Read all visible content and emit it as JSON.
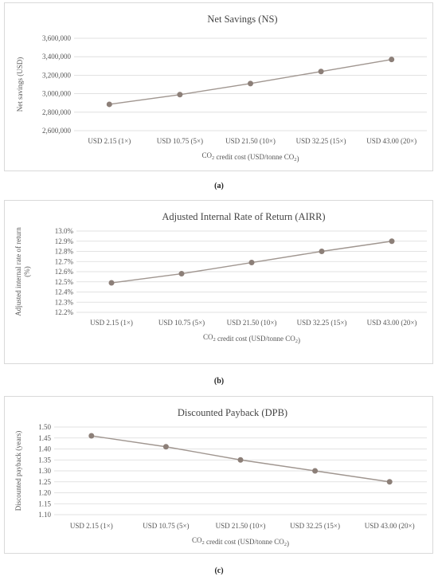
{
  "chart_data": [
    {
      "type": "line",
      "title": "Net Savings (NS)",
      "xlabel": "CO₂ credit cost (USD/tonne CO₂)",
      "ylabel": "Net savings (USD)",
      "categories": [
        "USD 2.15 (1×)",
        "USD 10.75 (5×)",
        "USD 21.50 (10×)",
        "USD 32.25 (15×)",
        "USD 43.00 (20×)"
      ],
      "values": [
        2885000,
        2990000,
        3110000,
        3240000,
        3370000
      ],
      "ylim": [
        2600000,
        3600000
      ],
      "yticks": [
        "2,600,000",
        "2,800,000",
        "3,000,000",
        "3,200,000",
        "3,400,000",
        "3,600,000"
      ],
      "caption": "(a)",
      "color": "#a09690",
      "grid": true
    },
    {
      "type": "line",
      "title": "Adjusted Internal Rate of Return (AIRR)",
      "xlabel": "CO₂ credit cost (USD/tonne CO₂)",
      "ylabel": "Adjusted internal rate of return (%)",
      "categories": [
        "USD 2.15 (1×)",
        "USD 10.75 (5×)",
        "USD 21.50 (10×)",
        "USD 32.25 (15×)",
        "USD 43.00 (20×)"
      ],
      "values": [
        12.49,
        12.58,
        12.69,
        12.8,
        12.9
      ],
      "ylim": [
        12.2,
        13.0
      ],
      "yticks": [
        "12.2%",
        "12.3%",
        "12.4%",
        "12.5%",
        "12.6%",
        "12.7%",
        "12.8%",
        "12.9%",
        "13.0%"
      ],
      "caption": "(b)",
      "color": "#a09690",
      "grid": true
    },
    {
      "type": "line",
      "title": "Discounted Payback (DPB)",
      "xlabel": "CO₂ credit cost (USD/tonne CO₂)",
      "ylabel": "Discounted payback (years)",
      "categories": [
        "USD 2.15 (1×)",
        "USD 10.75 (5×)",
        "USD 21.50 (10×)",
        "USD 32.25 (15×)",
        "USD 43.00 (20×)"
      ],
      "values": [
        1.46,
        1.41,
        1.35,
        1.3,
        1.25
      ],
      "ylim": [
        1.1,
        1.5
      ],
      "yticks": [
        "1.10",
        "1.15",
        "1.20",
        "1.25",
        "1.30",
        "1.35",
        "1.40",
        "1.45",
        "1.50"
      ],
      "caption": "(c)",
      "color": "#a09690",
      "grid": true
    }
  ]
}
